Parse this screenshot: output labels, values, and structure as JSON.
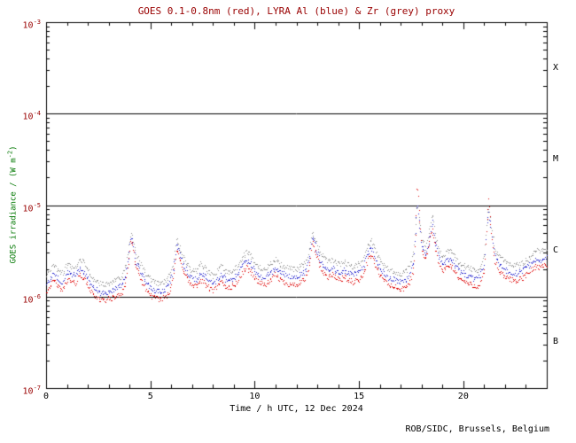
{
  "page": {
    "background": "#ffffff"
  },
  "header": {
    "title": "GOES 0.1-0.8nm (red), LYRA Al (blue) & Zr (grey) proxy"
  },
  "footer": {
    "credit": "ROB/SIDC, Brussels, Belgium"
  },
  "chart_data": {
    "type": "scatter",
    "title": "GOES 0.1-0.8nm (red), LYRA Al (blue) & Zr (grey) proxy",
    "xlabel": "Time / h UTC, 12 Dec 2024",
    "ylabel_prefix": "GOES irradiance / (W m",
    "ylabel_sup": "-2",
    "ylabel_suffix": ")",
    "title_color": "#990000",
    "ytick_color": "#990000",
    "ylabel_color": "#007700",
    "text_color": "#000000",
    "grid": false,
    "legend_position": "none",
    "xlim": [
      0,
      24
    ],
    "x_major_ticks": [
      0,
      5,
      10,
      15,
      20
    ],
    "x_major_tick_labels": [
      "0",
      "5",
      "10",
      "15",
      "20"
    ],
    "x_minor_step": 1,
    "ylog_axis": true,
    "ylim_exponents": [
      -7,
      -3
    ],
    "y_decade_exponents": [
      -3,
      -4,
      -5,
      -6,
      -7
    ],
    "y_decade_labels": [
      "-3",
      "-4",
      "-5",
      "-6",
      "-7"
    ],
    "ytick_base": "10",
    "flare_class_line_exponents": [
      -4,
      -5,
      -6
    ],
    "class_labels": [
      {
        "label": "X",
        "center_exp": -3.5
      },
      {
        "label": "M",
        "center_exp": -4.5
      },
      {
        "label": "C",
        "center_exp": -5.5
      },
      {
        "label": "B",
        "center_exp": -6.5
      }
    ],
    "values_unit": "1e-6 W m^-2",
    "unit_scale": 1e-06,
    "cadence_minutes": 2,
    "noise_seed": 42,
    "noise_amplitude_decades": 0.03,
    "x": [
      0,
      0.2,
      0.4,
      0.6,
      0.8,
      1.0,
      1.2,
      1.4,
      1.6,
      1.8,
      2.0,
      2.2,
      2.4,
      2.6,
      2.8,
      3.0,
      3.2,
      3.4,
      3.6,
      3.8,
      3.95,
      4.05,
      4.15,
      4.3,
      4.5,
      4.7,
      4.9,
      5.1,
      5.3,
      5.5,
      5.7,
      5.9,
      6.1,
      6.25,
      6.4,
      6.6,
      6.8,
      7.0,
      7.2,
      7.4,
      7.6,
      7.8,
      8.0,
      8.2,
      8.4,
      8.6,
      8.8,
      9.0,
      9.2,
      9.4,
      9.6,
      9.8,
      10.0,
      10.2,
      10.4,
      10.6,
      10.8,
      11.0,
      11.2,
      11.4,
      11.6,
      11.8,
      12.0,
      12.2,
      12.4,
      12.6,
      12.75,
      12.9,
      13.1,
      13.3,
      13.5,
      13.7,
      13.9,
      14.1,
      14.3,
      14.5,
      14.7,
      15.0,
      15.2,
      15.4,
      15.6,
      15.8,
      16.0,
      16.2,
      16.4,
      16.6,
      16.8,
      17.0,
      17.2,
      17.4,
      17.6,
      17.7,
      17.78,
      17.9,
      18.0,
      18.2,
      18.35,
      18.5,
      18.65,
      18.8,
      19.0,
      19.2,
      19.4,
      19.6,
      19.8,
      20.0,
      20.2,
      20.4,
      20.6,
      20.8,
      21.0,
      21.1,
      21.2,
      21.35,
      21.5,
      21.7,
      21.9,
      22.1,
      22.3,
      22.5,
      22.7,
      22.9,
      23.1,
      23.3,
      23.5,
      23.7,
      23.9,
      24.0
    ],
    "series": [
      {
        "name": "GOES 0.1-0.8nm",
        "color": "#dd0000",
        "values": [
          1.15,
          1.35,
          1.5,
          1.25,
          1.2,
          1.55,
          1.45,
          1.4,
          1.75,
          1.6,
          1.3,
          1.1,
          1.0,
          0.92,
          0.9,
          0.95,
          0.98,
          1.02,
          1.1,
          1.4,
          2.5,
          4.2,
          3.4,
          2.1,
          1.6,
          1.3,
          1.1,
          1.0,
          0.95,
          0.95,
          1.0,
          1.15,
          1.7,
          3.3,
          2.5,
          1.9,
          1.5,
          1.3,
          1.3,
          1.55,
          1.4,
          1.25,
          1.15,
          1.3,
          1.45,
          1.3,
          1.25,
          1.35,
          1.5,
          1.85,
          2.1,
          1.9,
          1.6,
          1.45,
          1.35,
          1.4,
          1.55,
          1.75,
          1.55,
          1.45,
          1.4,
          1.35,
          1.35,
          1.45,
          1.55,
          2.1,
          3.9,
          3.1,
          2.2,
          1.8,
          1.65,
          1.75,
          1.6,
          1.55,
          1.65,
          1.5,
          1.45,
          1.55,
          1.8,
          2.5,
          2.9,
          2.1,
          1.7,
          1.5,
          1.35,
          1.3,
          1.25,
          1.2,
          1.25,
          1.4,
          2.0,
          4.5,
          18.0,
          7.0,
          3.2,
          2.5,
          3.8,
          5.5,
          3.5,
          2.3,
          1.9,
          2.1,
          2.2,
          1.85,
          1.6,
          1.5,
          1.4,
          1.35,
          1.3,
          1.4,
          1.9,
          5.0,
          12.0,
          4.5,
          2.4,
          1.9,
          1.7,
          1.6,
          1.55,
          1.5,
          1.55,
          1.65,
          1.8,
          2.0,
          2.2,
          2.1,
          2.3,
          2.25
        ]
      },
      {
        "name": "LYRA Al proxy",
        "color": "#2222cc",
        "values": [
          1.4,
          1.6,
          1.8,
          1.5,
          1.45,
          1.85,
          1.75,
          1.7,
          2.1,
          1.9,
          1.55,
          1.3,
          1.2,
          1.1,
          1.08,
          1.14,
          1.18,
          1.25,
          1.35,
          1.7,
          2.9,
          4.6,
          3.8,
          2.4,
          1.9,
          1.55,
          1.35,
          1.2,
          1.15,
          1.15,
          1.2,
          1.4,
          2.0,
          3.8,
          2.9,
          2.2,
          1.8,
          1.55,
          1.55,
          1.85,
          1.7,
          1.5,
          1.4,
          1.55,
          1.75,
          1.55,
          1.5,
          1.6,
          1.8,
          2.2,
          2.5,
          2.3,
          1.9,
          1.75,
          1.6,
          1.7,
          1.85,
          2.1,
          1.85,
          1.75,
          1.7,
          1.6,
          1.6,
          1.75,
          1.85,
          2.5,
          4.4,
          3.6,
          2.6,
          2.15,
          2.0,
          2.1,
          1.9,
          1.85,
          2.0,
          1.8,
          1.75,
          1.85,
          2.15,
          3.0,
          3.4,
          2.5,
          2.05,
          1.8,
          1.6,
          1.55,
          1.5,
          1.45,
          1.5,
          1.7,
          2.4,
          5.0,
          11.0,
          6.0,
          3.6,
          2.9,
          4.2,
          6.5,
          4.0,
          2.7,
          2.3,
          2.5,
          2.6,
          2.2,
          1.9,
          1.8,
          1.7,
          1.6,
          1.55,
          1.7,
          2.3,
          5.5,
          8.0,
          4.8,
          2.8,
          2.3,
          2.05,
          1.9,
          1.85,
          1.8,
          1.85,
          2.0,
          2.15,
          2.4,
          2.6,
          2.5,
          2.75,
          2.7
        ]
      },
      {
        "name": "LYRA Zr proxy",
        "color": "#909090",
        "values": [
          1.7,
          2.0,
          2.2,
          1.85,
          1.8,
          2.3,
          2.15,
          2.1,
          2.6,
          2.4,
          1.95,
          1.65,
          1.5,
          1.4,
          1.35,
          1.42,
          1.47,
          1.55,
          1.65,
          2.1,
          3.4,
          5.2,
          4.4,
          2.9,
          2.3,
          1.9,
          1.65,
          1.5,
          1.42,
          1.42,
          1.5,
          1.7,
          2.4,
          4.3,
          3.4,
          2.6,
          2.2,
          1.9,
          1.9,
          2.3,
          2.1,
          1.85,
          1.7,
          1.9,
          2.15,
          1.9,
          1.85,
          2.0,
          2.2,
          2.7,
          3.1,
          2.8,
          2.35,
          2.15,
          2.0,
          2.1,
          2.3,
          2.6,
          2.3,
          2.15,
          2.1,
          2.0,
          2.0,
          2.15,
          2.3,
          3.1,
          5.0,
          4.2,
          3.2,
          2.65,
          2.45,
          2.6,
          2.35,
          2.3,
          2.45,
          2.2,
          2.15,
          2.3,
          2.65,
          3.6,
          4.1,
          3.1,
          2.5,
          2.2,
          2.0,
          1.9,
          1.85,
          1.8,
          1.85,
          2.1,
          2.9,
          5.8,
          9.5,
          6.8,
          4.3,
          3.5,
          5.0,
          8.0,
          4.8,
          3.3,
          2.8,
          3.1,
          3.2,
          2.7,
          2.35,
          2.2,
          2.1,
          2.0,
          1.9,
          2.1,
          2.8,
          6.0,
          9.0,
          5.5,
          3.4,
          2.8,
          2.5,
          2.3,
          2.25,
          2.2,
          2.25,
          2.4,
          2.6,
          2.9,
          3.2,
          3.1,
          3.3,
          3.3
        ]
      }
    ]
  }
}
